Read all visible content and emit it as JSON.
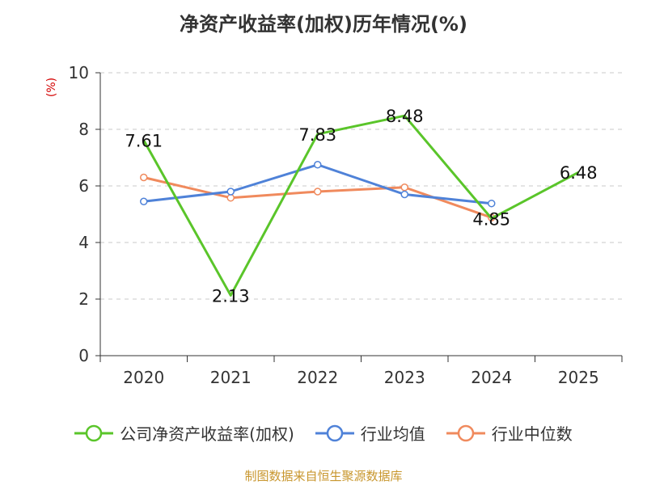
{
  "chart_data": {
    "type": "line",
    "title": "净资产收益率(加权)历年情况(%)",
    "ylabel": "(%)",
    "xlabel": "",
    "ylim": [
      0,
      10
    ],
    "yticks": [
      0,
      2,
      4,
      6,
      8,
      10
    ],
    "categories": [
      "2020",
      "2021",
      "2022",
      "2023",
      "2024",
      "2025"
    ],
    "series": [
      {
        "name": "公司净资产收益率(加权)",
        "color": "#5ac52a",
        "values": [
          7.61,
          2.13,
          7.83,
          8.48,
          4.85,
          6.48
        ],
        "labels": [
          "7.61",
          "2.13",
          "7.83",
          "8.48",
          "4.85",
          "6.48"
        ]
      },
      {
        "name": "行业均值",
        "color": "#4f82d8",
        "values": [
          5.45,
          5.8,
          6.75,
          5.7,
          5.38,
          null
        ]
      },
      {
        "name": "行业中位数",
        "color": "#f08a5d",
        "values": [
          6.3,
          5.58,
          5.8,
          5.95,
          4.88,
          null
        ]
      }
    ],
    "grid": true,
    "legend": "bottom"
  },
  "footer": {
    "source": "制图数据来自恒生聚源数据库"
  }
}
